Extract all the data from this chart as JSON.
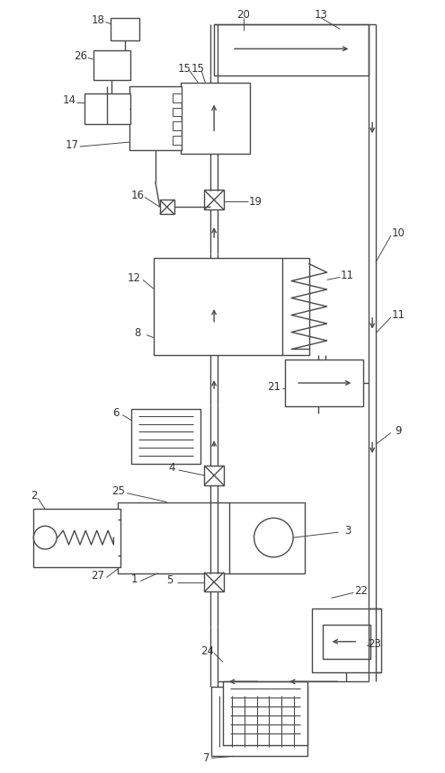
{
  "bg_color": "#ffffff",
  "line_color": "#4a4a4a",
  "label_color": "#333333",
  "fig_width": 4.95,
  "fig_height": 8.6,
  "dpi": 100,
  "lw": 1.0
}
